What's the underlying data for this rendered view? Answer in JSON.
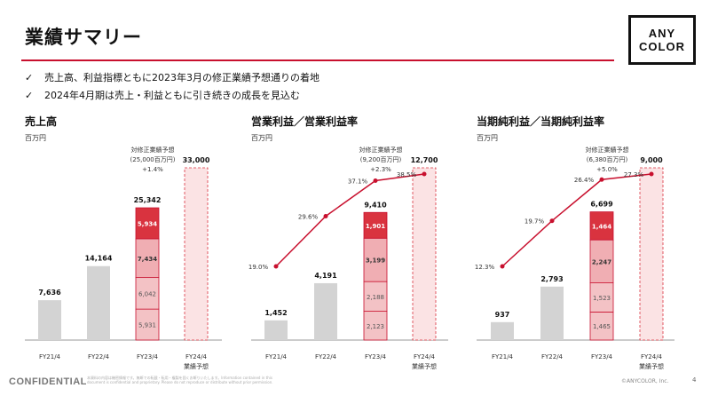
{
  "page": {
    "title": "業績サマリー",
    "logo_line1": "ANY",
    "logo_line2": "COLOR",
    "bullets": [
      "売上高、利益指標ともに2023年3月の修正業績予想通りの着地",
      "2024年4月期は売上・利益ともに引き続きの成長を見込む"
    ],
    "check_mark": "✓",
    "footer_left": "CONFIDENTIAL",
    "footer_note": "本資料の内容は機密情報です。無断での転載・転用・複製を固くお断りいたします。Information contained in this document is confidential and proprietary. Please do not reproduce or distribute without prior permission.",
    "footer_right": "©ANYCOLOR, Inc.",
    "page_number": "4",
    "colors": {
      "accent": "#c8102e",
      "gray_bar": "#d3d3d3",
      "line": "#c8102e"
    }
  },
  "chart_data": [
    {
      "type": "bar",
      "title": "売上高",
      "unit": "百万円",
      "categories": [
        "FY21/4",
        "FY22/4",
        "FY23/4",
        "FY24/4\n業績予想"
      ],
      "totals": [
        7636,
        14164,
        25342,
        33000
      ],
      "total_labels": [
        "7,636",
        "14,164",
        "25,342",
        "33,000"
      ],
      "fy23_segments": [
        5931,
        6042,
        7434,
        5934
      ],
      "fy23_segment_labels": [
        "5,931",
        "6,042",
        "7,434",
        "5,934"
      ],
      "forecast_note": [
        "対修正業績予想",
        "(25,000百万円)",
        "+1.4%"
      ],
      "ylim": [
        0,
        34000
      ]
    },
    {
      "type": "bar+line",
      "title": "営業利益／営業利益率",
      "unit": "百万円",
      "categories": [
        "FY21/4",
        "FY22/4",
        "FY23/4",
        "FY24/4\n業績予想"
      ],
      "totals": [
        1452,
        4191,
        9410,
        12700
      ],
      "total_labels": [
        "1,452",
        "4,191",
        "9,410",
        "12,700"
      ],
      "fy23_segments": [
        2123,
        2188,
        3199,
        1901
      ],
      "fy23_segment_labels": [
        "2,123",
        "2,188",
        "3,199",
        "1,901"
      ],
      "margin": [
        19.0,
        29.6,
        37.1,
        38.5
      ],
      "margin_labels": [
        "19.0%",
        "29.6%",
        "37.1%",
        "38.5%"
      ],
      "forecast_note": [
        "対修正業績予想",
        "(9,200百万円)",
        "+2.3%"
      ],
      "ylim": [
        0,
        13000
      ]
    },
    {
      "type": "bar+line",
      "title": "当期純利益／当期純利益率",
      "unit": "百万円",
      "categories": [
        "FY21/4",
        "FY22/4",
        "FY23/4",
        "FY24/4\n業績予想"
      ],
      "totals": [
        937,
        2793,
        6699,
        9000
      ],
      "total_labels": [
        "937",
        "2,793",
        "6,699",
        "9,000"
      ],
      "fy23_segments": [
        1465,
        1523,
        2247,
        1464
      ],
      "fy23_segment_labels": [
        "1,465",
        "1,523",
        "2,247",
        "1,464"
      ],
      "margin": [
        12.3,
        19.7,
        26.4,
        27.3
      ],
      "margin_labels": [
        "12.3%",
        "19.7%",
        "26.4%",
        "27.3%"
      ],
      "forecast_note": [
        "対修正業績予想",
        "(6,380百万円)",
        "+5.0%"
      ],
      "ylim": [
        0,
        9300
      ]
    }
  ]
}
